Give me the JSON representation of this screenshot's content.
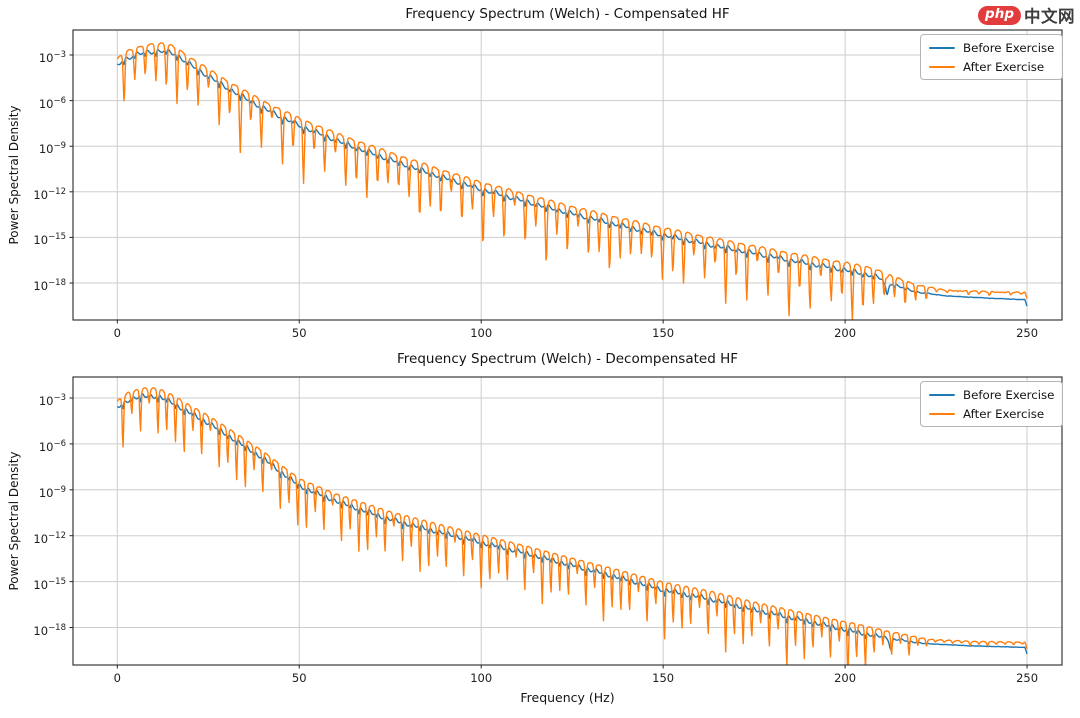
{
  "watermark": {
    "badge_text": "php",
    "cn_text": "中文网",
    "badge_color": "#e23c3c"
  },
  "shared_xlabel": "Frequency (Hz)",
  "chart_data": [
    {
      "type": "line",
      "title": "Frequency Spectrum (Welch) - Compensated HF",
      "xlabel": "",
      "ylabel": "Power Spectral Density",
      "y_scale": "log",
      "grid": true,
      "legend_position": "upper right",
      "xlim": [
        0,
        250
      ],
      "x_ticks": [
        0,
        50,
        100,
        150,
        200,
        250
      ],
      "y_tick_exponents": [
        -3,
        -6,
        -9,
        -12,
        -15,
        -18
      ],
      "oscillation": {
        "period": 2.9,
        "notch_depth": 2.3,
        "fade_start": 206,
        "fade_end": 226,
        "spike_f": 211.5,
        "spike_depth": 0.9
      },
      "series": [
        {
          "name": "Before Exercise",
          "color": "#1f77b4",
          "style": "smooth",
          "envelope_log10": [
            [
              0,
              -3.65
            ],
            [
              2,
              -3.25
            ],
            [
              5,
              -2.95
            ],
            [
              9,
              -2.75
            ],
            [
              13,
              -2.72
            ],
            [
              16,
              -2.9
            ],
            [
              20,
              -3.6
            ],
            [
              25,
              -4.35
            ],
            [
              30,
              -5.1
            ],
            [
              40,
              -6.45
            ],
            [
              50,
              -7.6
            ],
            [
              62,
              -8.75
            ],
            [
              75,
              -9.85
            ],
            [
              88,
              -10.9
            ],
            [
              100,
              -11.8
            ],
            [
              113,
              -12.65
            ],
            [
              125,
              -13.4
            ],
            [
              138,
              -14.15
            ],
            [
              150,
              -14.8
            ],
            [
              163,
              -15.45
            ],
            [
              175,
              -16.0
            ],
            [
              188,
              -16.6
            ],
            [
              200,
              -17.1
            ],
            [
              208,
              -17.5
            ],
            [
              214,
              -18.15
            ],
            [
              220,
              -18.6
            ],
            [
              228,
              -18.85
            ],
            [
              240,
              -19.0
            ],
            [
              250,
              -19.1
            ]
          ]
        },
        {
          "name": "After Exercise",
          "color": "#ff7f0e",
          "style": "notched",
          "envelope_log10": [
            [
              0,
              -3.6
            ],
            [
              2,
              -3.15
            ],
            [
              5,
              -2.85
            ],
            [
              9,
              -2.62
            ],
            [
              13,
              -2.58
            ],
            [
              16,
              -2.8
            ],
            [
              20,
              -3.5
            ],
            [
              25,
              -4.25
            ],
            [
              30,
              -5.0
            ],
            [
              40,
              -6.35
            ],
            [
              50,
              -7.5
            ],
            [
              62,
              -8.65
            ],
            [
              75,
              -9.75
            ],
            [
              88,
              -10.8
            ],
            [
              100,
              -11.7
            ],
            [
              113,
              -12.55
            ],
            [
              125,
              -13.3
            ],
            [
              138,
              -14.05
            ],
            [
              150,
              -14.7
            ],
            [
              163,
              -15.35
            ],
            [
              175,
              -15.9
            ],
            [
              188,
              -16.5
            ],
            [
              200,
              -17.0
            ],
            [
              208,
              -17.35
            ],
            [
              214,
              -17.85
            ],
            [
              220,
              -18.25
            ],
            [
              228,
              -18.5
            ],
            [
              240,
              -18.6
            ],
            [
              250,
              -18.65
            ]
          ]
        }
      ]
    },
    {
      "type": "line",
      "title": "Frequency Spectrum (Welch) - Decompensated HF",
      "xlabel": "Frequency (Hz)",
      "ylabel": "Power Spectral Density",
      "y_scale": "log",
      "grid": true,
      "legend_position": "upper right",
      "xlim": [
        0,
        250
      ],
      "x_ticks": [
        0,
        50,
        100,
        150,
        200,
        250
      ],
      "y_tick_exponents": [
        -3,
        -6,
        -9,
        -12,
        -15,
        -18
      ],
      "oscillation": {
        "period": 2.4,
        "notch_depth": 2.1,
        "fade_start": 203,
        "fade_end": 224,
        "spike_f": 212.5,
        "spike_depth": 0.65
      },
      "series": [
        {
          "name": "Before Exercise",
          "color": "#1f77b4",
          "style": "smooth",
          "envelope_log10": [
            [
              0,
              -3.6
            ],
            [
              3,
              -3.1
            ],
            [
              7,
              -2.85
            ],
            [
              11,
              -2.85
            ],
            [
              15,
              -3.25
            ],
            [
              20,
              -3.95
            ],
            [
              25,
              -4.6
            ],
            [
              30,
              -5.35
            ],
            [
              40,
              -6.9
            ],
            [
              50,
              -8.7
            ],
            [
              60,
              -9.7
            ],
            [
              75,
              -10.9
            ],
            [
              88,
              -11.7
            ],
            [
              100,
              -12.4
            ],
            [
              113,
              -13.15
            ],
            [
              125,
              -13.9
            ],
            [
              138,
              -14.7
            ],
            [
              150,
              -15.5
            ],
            [
              163,
              -16.1
            ],
            [
              175,
              -16.8
            ],
            [
              188,
              -17.45
            ],
            [
              200,
              -18.1
            ],
            [
              208,
              -18.5
            ],
            [
              215,
              -18.8
            ],
            [
              222,
              -19.05
            ],
            [
              235,
              -19.2
            ],
            [
              250,
              -19.3
            ]
          ]
        },
        {
          "name": "After Exercise",
          "color": "#ff7f0e",
          "style": "notched",
          "envelope_log10": [
            [
              0,
              -3.55
            ],
            [
              3,
              -3.0
            ],
            [
              7,
              -2.72
            ],
            [
              11,
              -2.72
            ],
            [
              15,
              -3.15
            ],
            [
              20,
              -3.85
            ],
            [
              25,
              -4.5
            ],
            [
              30,
              -5.25
            ],
            [
              40,
              -6.8
            ],
            [
              50,
              -8.6
            ],
            [
              60,
              -9.6
            ],
            [
              75,
              -10.8
            ],
            [
              88,
              -11.6
            ],
            [
              100,
              -12.3
            ],
            [
              113,
              -13.05
            ],
            [
              125,
              -13.8
            ],
            [
              138,
              -14.6
            ],
            [
              150,
              -15.4
            ],
            [
              163,
              -16.0
            ],
            [
              175,
              -16.7
            ],
            [
              188,
              -17.35
            ],
            [
              200,
              -17.95
            ],
            [
              208,
              -18.3
            ],
            [
              215,
              -18.55
            ],
            [
              222,
              -18.8
            ],
            [
              235,
              -18.95
            ],
            [
              250,
              -19.0
            ]
          ]
        }
      ]
    }
  ]
}
